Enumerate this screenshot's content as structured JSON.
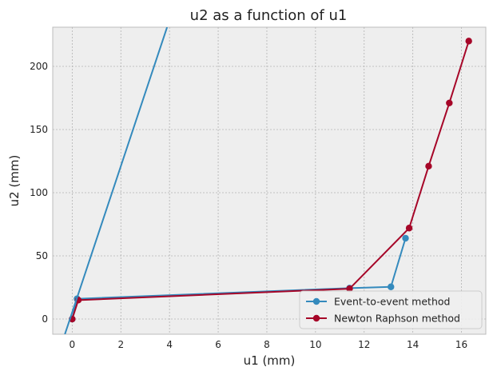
{
  "chart_data": {
    "type": "line",
    "title": "u2 as a function of u1",
    "xlabel": "u1 (mm)",
    "ylabel": "u2 (mm)",
    "xlim": [
      -0.8,
      17.0
    ],
    "ylim": [
      -12,
      231
    ],
    "xticks": [
      0,
      2,
      4,
      6,
      8,
      10,
      12,
      14,
      16
    ],
    "yticks": [
      0,
      50,
      100,
      150,
      200
    ],
    "grid": true,
    "legend_position": "bottom-right",
    "colors": {
      "background": "#EEEEEE",
      "grid": "#B2B2B2",
      "spine": "#BCBCBC",
      "text": "#222222"
    },
    "series": [
      {
        "name": "Event-to-event method",
        "color": "#348ABD",
        "marker": "circle",
        "x": [
          0.0,
          0.2,
          11.4,
          13.1,
          13.7
        ],
        "y": [
          0.0,
          16.0,
          24.5,
          25.5,
          64.0
        ]
      },
      {
        "name": "Newton Raphson method",
        "color": "#A60628",
        "marker": "circle",
        "x": [
          0.0,
          0.25,
          11.4,
          13.85,
          14.65,
          15.5,
          16.3
        ],
        "y": [
          0.0,
          15.0,
          24.0,
          72.0,
          121.0,
          171.0,
          220.0
        ]
      },
      {
        "color": "#348ABD",
        "marker": "none",
        "x": [
          -0.3,
          3.9
        ],
        "y": [
          -12,
          231
        ]
      }
    ]
  }
}
